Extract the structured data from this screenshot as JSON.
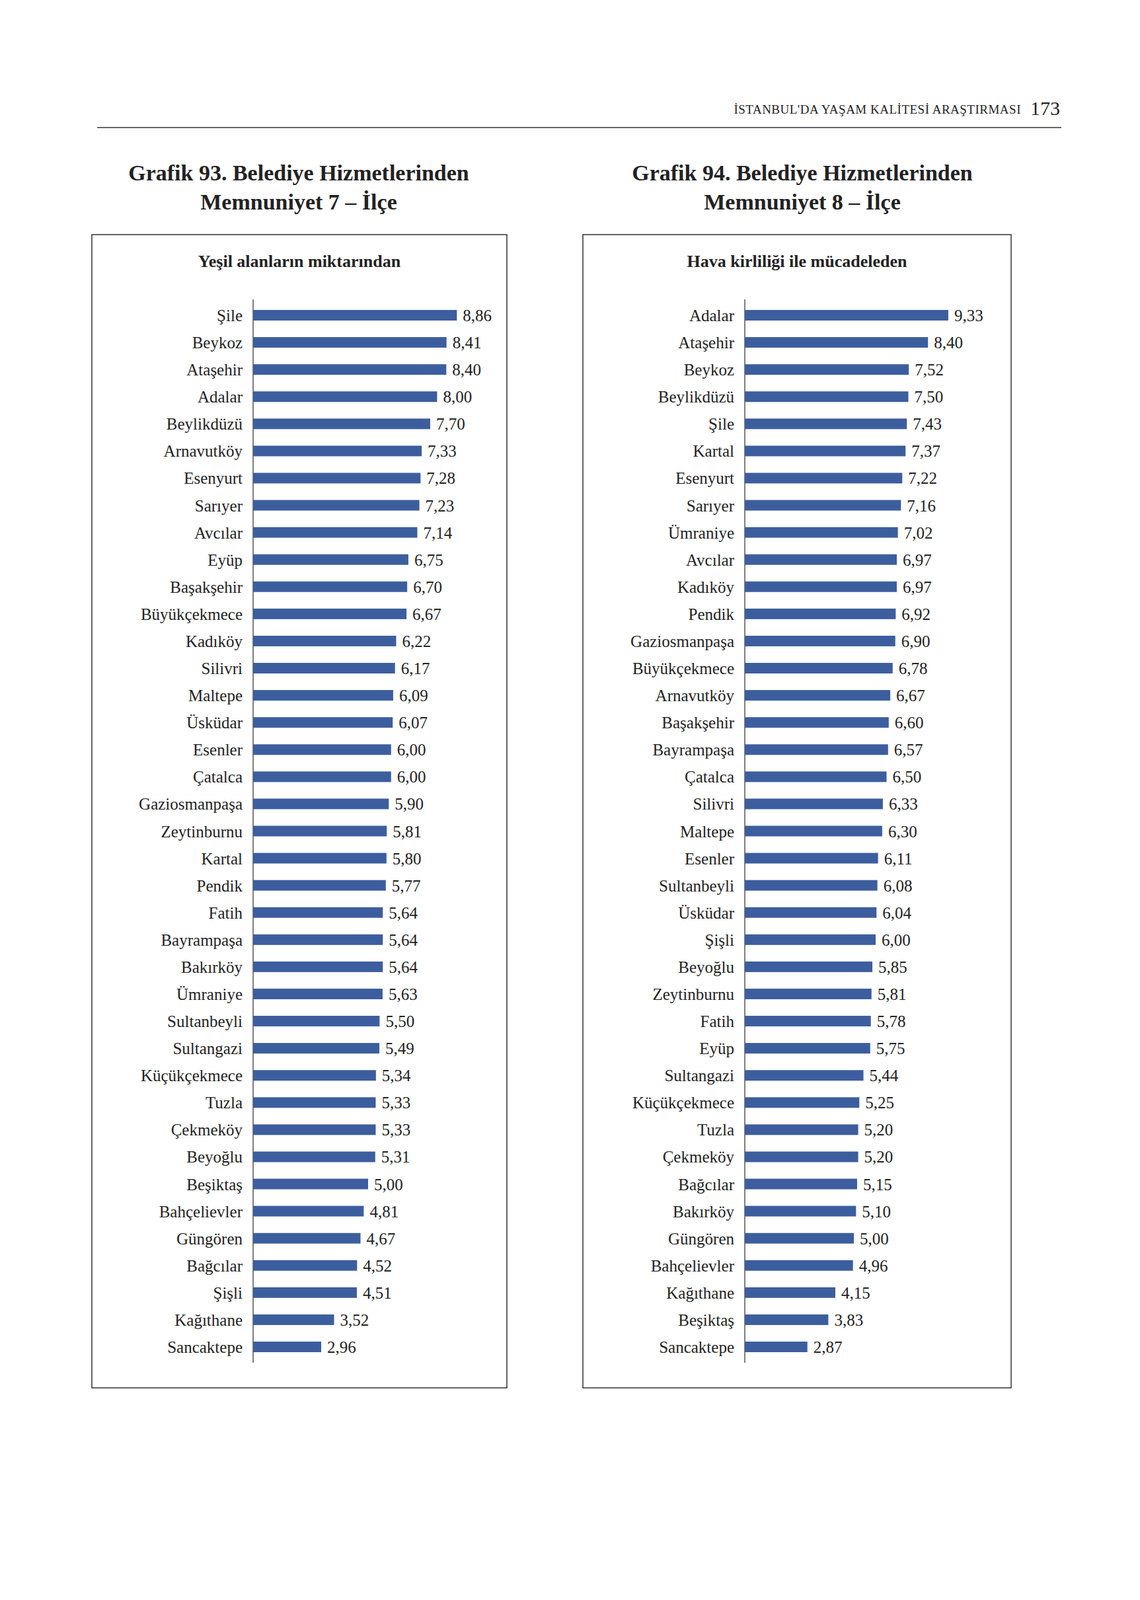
{
  "page": {
    "header": "İSTANBUL'DA YAŞAM KALİTESİ ARAŞTIRMASI",
    "page_number": "173"
  },
  "chart_data": [
    {
      "type": "bar",
      "orientation": "horizontal",
      "title": "Grafik 93. Belediye Hizmetlerinden Memnuniyet 7 – İlçe",
      "subtitle": "Yeşil alanların miktarından",
      "categories": [
        "Şile",
        "Beykoz",
        "Ataşehir",
        "Adalar",
        "Beylikdüzü",
        "Arnavutköy",
        "Esenyurt",
        "Sarıyer",
        "Avcılar",
        "Eyüp",
        "Başakşehir",
        "Büyükçekmece",
        "Kadıköy",
        "Silivri",
        "Maltepe",
        "Üsküdar",
        "Esenler",
        "Çatalca",
        "Gaziosmanpaşa",
        "Zeytinburnu",
        "Kartal",
        "Pendik",
        "Fatih",
        "Bayrampaşa",
        "Bakırköy",
        "Ümraniye",
        "Sultanbeyli",
        "Sultangazi",
        "Küçükçekmece",
        "Tuzla",
        "Çekmeköy",
        "Beyoğlu",
        "Beşiktaş",
        "Bahçelievler",
        "Güngören",
        "Bağcılar",
        "Şişli",
        "Kağıthane",
        "Sancaktepe"
      ],
      "values": [
        8.86,
        8.41,
        8.4,
        8.0,
        7.7,
        7.33,
        7.28,
        7.23,
        7.14,
        6.75,
        6.7,
        6.67,
        6.22,
        6.17,
        6.09,
        6.07,
        6.0,
        6.0,
        5.9,
        5.81,
        5.8,
        5.77,
        5.64,
        5.64,
        5.64,
        5.63,
        5.5,
        5.49,
        5.34,
        5.33,
        5.33,
        5.31,
        5.0,
        4.81,
        4.67,
        4.52,
        4.51,
        3.52,
        2.96
      ],
      "value_labels": [
        "8,86",
        "8,41",
        "8,40",
        "8,00",
        "7,70",
        "7,33",
        "7,28",
        "7,23",
        "7,14",
        "6,75",
        "6,70",
        "6,67",
        "6,22",
        "6,17",
        "6,09",
        "6,07",
        "6,00",
        "6,00",
        "5,90",
        "5,81",
        "5,80",
        "5,77",
        "5,64",
        "5,64",
        "5,64",
        "5,63",
        "5,50",
        "5,49",
        "5,34",
        "5,33",
        "5,33",
        "5,31",
        "5,00",
        "4,81",
        "4,67",
        "4,52",
        "4,51",
        "3,52",
        "2,96"
      ],
      "color": "#3d5e9e",
      "xlim": [
        0,
        10
      ],
      "data_labels": true,
      "tick_labels": "y",
      "grid": false
    },
    {
      "type": "bar",
      "orientation": "horizontal",
      "title": "Grafik 94. Belediye Hizmetlerinden Memnuniyet 8 – İlçe",
      "subtitle": "Hava kirliliği ile mücadeleden",
      "categories": [
        "Adalar",
        "Ataşehir",
        "Beykoz",
        "Beylikdüzü",
        "Şile",
        "Kartal",
        "Esenyurt",
        "Sarıyer",
        "Ümraniye",
        "Avcılar",
        "Kadıköy",
        "Pendik",
        "Gaziosmanpaşa",
        "Büyükçekmece",
        "Arnavutköy",
        "Başakşehir",
        "Bayrampaşa",
        "Çatalca",
        "Silivri",
        "Maltepe",
        "Esenler",
        "Sultanbeyli",
        "Üsküdar",
        "Şişli",
        "Beyoğlu",
        "Zeytinburnu",
        "Fatih",
        "Eyüp",
        "Sultangazi",
        "Küçükçekmece",
        "Tuzla",
        "Çekmeköy",
        "Bağcılar",
        "Bakırköy",
        "Güngören",
        "Bahçelievler",
        "Kağıthane",
        "Beşiktaş",
        "Sancaktepe"
      ],
      "values": [
        9.33,
        8.4,
        7.52,
        7.5,
        7.43,
        7.37,
        7.22,
        7.16,
        7.02,
        6.97,
        6.97,
        6.92,
        6.9,
        6.78,
        6.67,
        6.6,
        6.57,
        6.5,
        6.33,
        6.3,
        6.11,
        6.08,
        6.04,
        6.0,
        5.85,
        5.81,
        5.78,
        5.75,
        5.44,
        5.25,
        5.2,
        5.2,
        5.15,
        5.1,
        5.0,
        4.96,
        4.15,
        3.83,
        2.87
      ],
      "value_labels": [
        "9,33",
        "8,40",
        "7,52",
        "7,50",
        "7,43",
        "7,37",
        "7,22",
        "7,16",
        "7,02",
        "6,97",
        "6,97",
        "6,92",
        "6,90",
        "6,78",
        "6,67",
        "6,60",
        "6,57",
        "6,50",
        "6,33",
        "6,30",
        "6,11",
        "6,08",
        "6,04",
        "6,00",
        "5,85",
        "5,81",
        "5,78",
        "5,75",
        "5,44",
        "5,25",
        "5,20",
        "5,20",
        "5,15",
        "5,10",
        "5,00",
        "4,96",
        "4,15",
        "3,83",
        "2,87"
      ],
      "color": "#3d5e9e",
      "xlim": [
        0,
        10
      ],
      "data_labels": true,
      "tick_labels": "y",
      "grid": false
    }
  ]
}
